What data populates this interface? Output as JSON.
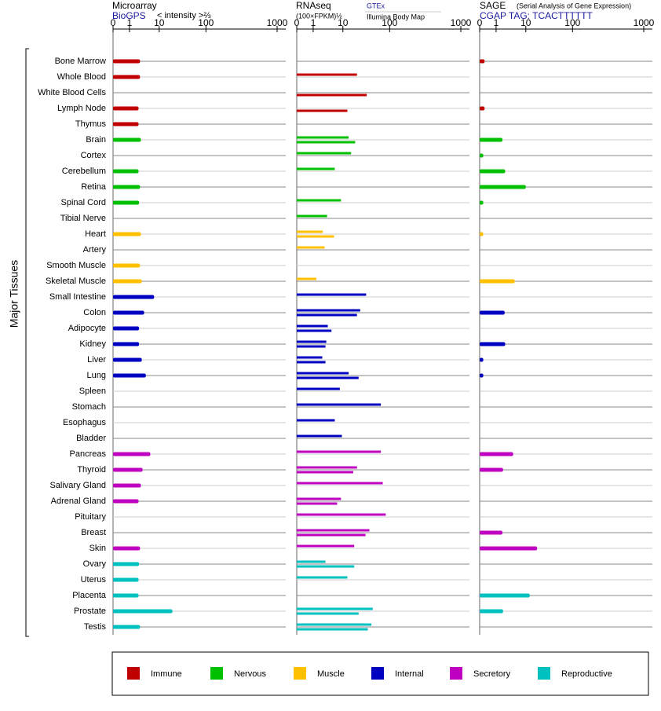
{
  "chart_data": {
    "type": "bar",
    "orientation": "horizontal",
    "y_label": "Major Tissues",
    "categories": [
      "Bone Marrow",
      "Whole Blood",
      "White Blood Cells",
      "Lymph Node",
      "Thymus",
      "Brain",
      "Cortex",
      "Cerebellum",
      "Retina",
      "Spinal Cord",
      "Tibial Nerve",
      "Heart",
      "Artery",
      "Smooth Muscle",
      "Skeletal Muscle",
      "Small Intestine",
      "Colon",
      "Adipocyte",
      "Kidney",
      "Liver",
      "Lung",
      "Spleen",
      "Stomach",
      "Esophagus",
      "Bladder",
      "Pancreas",
      "Thyroid",
      "Salivary Gland",
      "Adrenal Gland",
      "Pituitary",
      "Breast",
      "Skin",
      "Ovary",
      "Uterus",
      "Placenta",
      "Prostate",
      "Testis"
    ],
    "category_groups": [
      0,
      0,
      0,
      0,
      0,
      1,
      1,
      1,
      1,
      1,
      1,
      2,
      2,
      2,
      2,
      3,
      3,
      3,
      3,
      3,
      3,
      3,
      3,
      3,
      3,
      4,
      4,
      4,
      4,
      4,
      4,
      4,
      5,
      5,
      5,
      5,
      5
    ],
    "legend": [
      {
        "name": "Immune",
        "color": "#c00000"
      },
      {
        "name": "Nervous",
        "color": "#00c000"
      },
      {
        "name": "Muscle",
        "color": "#ffc000"
      },
      {
        "name": "Internal",
        "color": "#0000c0"
      },
      {
        "name": "Secretory",
        "color": "#c000c0"
      },
      {
        "name": "Reproductive",
        "color": "#00c0c0"
      }
    ],
    "panels": [
      {
        "title": "Microarray",
        "source": "BioGPS",
        "unit": "< intensity >⅔",
        "xlim": [
          0,
          1000
        ],
        "xticks": [
          0,
          1,
          10,
          100,
          1000
        ],
        "series": [
          {
            "values": [
              2.7,
              2.7,
              null,
              2.4,
              2.4,
              2.9,
              null,
              2.4,
              2.7,
              2.5,
              null,
              2.9,
              null,
              2.7,
              3.1,
              7.3,
              3.7,
              2.5,
              2.5,
              3.1,
              4.2,
              null,
              null,
              null,
              null,
              5.7,
              3.3,
              2.9,
              2.4,
              null,
              null,
              2.7,
              2.5,
              2.4,
              2.4,
              21,
              2.7
            ]
          }
        ]
      },
      {
        "title": "RNAseq",
        "unit": "(100×FPKM)½",
        "xlim": [
          0,
          1000
        ],
        "xticks": [
          0,
          1,
          10,
          100,
          1000
        ],
        "series": [
          {
            "name": "GTEx",
            "values": [
              null,
              22,
              null,
              null,
              null,
              14,
              16,
              6,
              null,
              8.9,
              3.5,
              2.5,
              2.9,
              null,
              1.4,
              35,
              26,
              3.7,
              3.3,
              2.4,
              14,
              8.3,
              69,
              6,
              9.4,
              69,
              22,
              75,
              8.9,
              85,
              41,
              19,
              3.1,
              13,
              null,
              48,
              45
            ]
          },
          {
            "name": "Illumina Body Map",
            "values": [
              null,
              null,
              36,
              13,
              null,
              20,
              null,
              null,
              null,
              null,
              null,
              5.7,
              null,
              null,
              null,
              null,
              22,
              4.8,
              3.1,
              3.1,
              24,
              null,
              null,
              null,
              null,
              null,
              18,
              null,
              7,
              null,
              34,
              null,
              19,
              null,
              null,
              24,
              38
            ]
          }
        ]
      },
      {
        "title": "SAGE",
        "subtitle": "(Serial Analysis of Gene Expression)",
        "source": "CGAP TAG: TCACTTTTTT",
        "xlim": [
          0,
          1000
        ],
        "xticks": [
          0,
          1,
          10,
          100,
          1000
        ],
        "series": [
          {
            "values": [
              0.1,
              null,
              null,
              0.1,
              null,
              1.9,
              0.05,
              2.4,
              10,
              0.05,
              null,
              0.05,
              null,
              null,
              4.9,
              null,
              2.3,
              null,
              2.4,
              0.05,
              0.05,
              null,
              null,
              null,
              null,
              4.4,
              2,
              null,
              null,
              null,
              1.9,
              19,
              null,
              null,
              12.6,
              2,
              null
            ]
          }
        ]
      }
    ]
  }
}
